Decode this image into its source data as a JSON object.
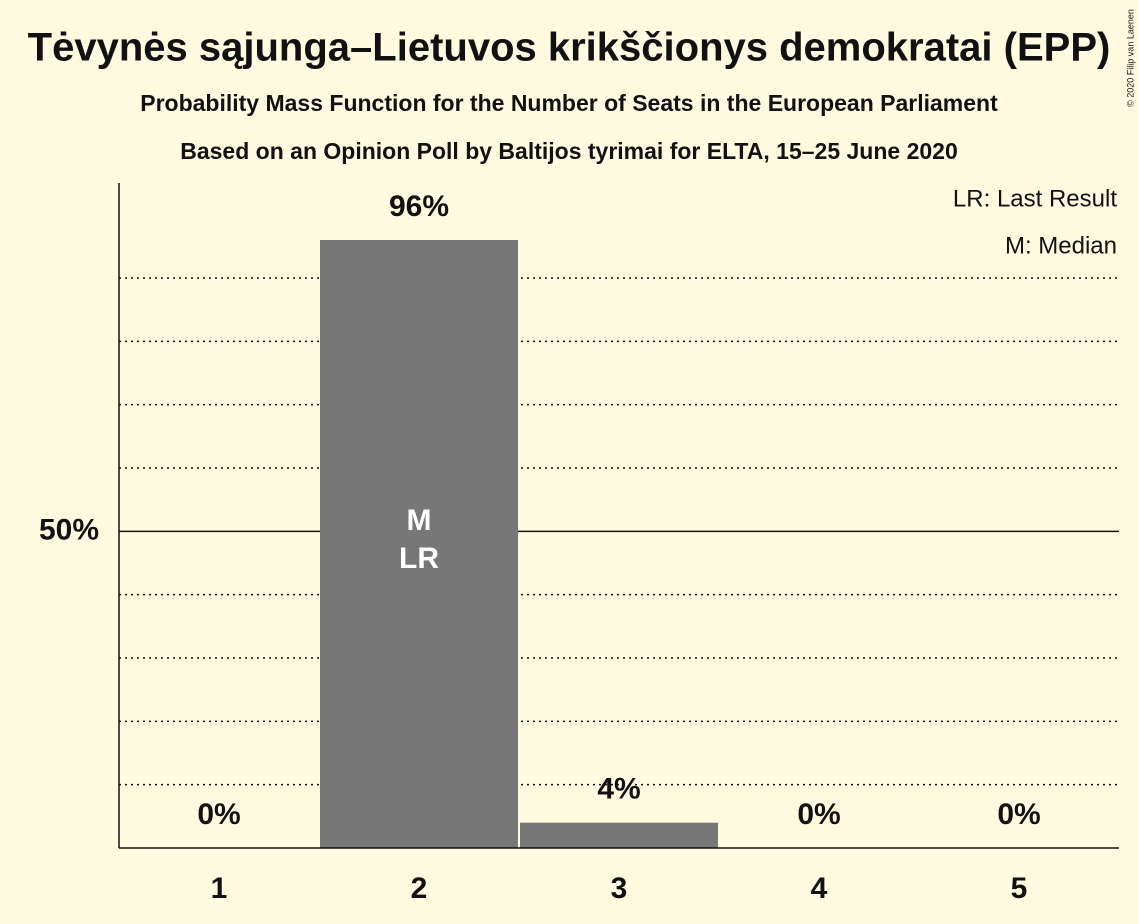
{
  "chart_data": {
    "type": "bar",
    "title": "Tėvynės sąjunga–Lietuvos krikščionys demokratai (EPP)",
    "subtitle": "Probability Mass Function for the Number of Seats in the European Parliament",
    "subtitle2": "Based on an Opinion Poll by Baltijos tyrimai for ELTA, 15–25 June 2020",
    "copyright": "© 2020 Filip van Laenen",
    "categories": [
      "1",
      "2",
      "3",
      "4",
      "5"
    ],
    "values": [
      0,
      96,
      4,
      0,
      0
    ],
    "value_labels": [
      "0%",
      "96%",
      "4%",
      "0%",
      "0%"
    ],
    "color": "#777777",
    "ylim": [
      0,
      105
    ],
    "yticks": [
      {
        "value": 50,
        "label": "50%"
      }
    ],
    "minor_yticks": [
      10,
      20,
      30,
      40,
      60,
      70,
      80,
      90
    ],
    "median": {
      "label": "M",
      "category": "2",
      "legend": "M: Median"
    },
    "last_result": {
      "label": "LR",
      "category": "2",
      "legend": "LR: Last Result"
    },
    "legend_position": "upper right"
  }
}
